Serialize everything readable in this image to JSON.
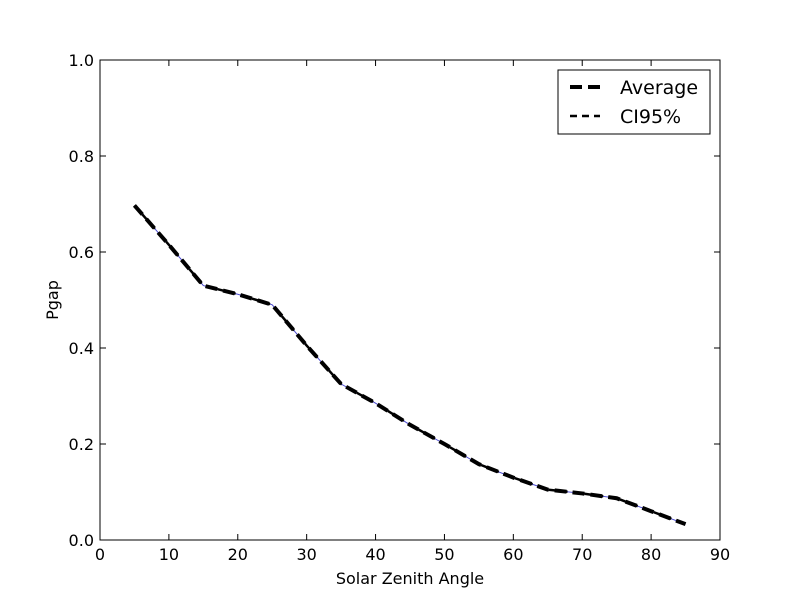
{
  "chart_data": {
    "type": "line",
    "xlabel": "Solar Zenith Angle",
    "ylabel": "Pgap",
    "xlim": [
      0,
      90
    ],
    "ylim": [
      0.0,
      1.0
    ],
    "xticks": [
      0,
      10,
      20,
      30,
      40,
      50,
      60,
      70,
      80,
      90
    ],
    "yticks": [
      0.0,
      0.2,
      0.4,
      0.6,
      0.8,
      1.0
    ],
    "xtick_labels": [
      "0",
      "10",
      "20",
      "30",
      "40",
      "50",
      "60",
      "70",
      "80",
      "90"
    ],
    "ytick_labels": [
      "0.0",
      "0.2",
      "0.4",
      "0.6",
      "0.8",
      "1.0"
    ],
    "grid": false,
    "legend_position": "top-right",
    "x": [
      5,
      10,
      15,
      20,
      25,
      30,
      35,
      40,
      45,
      50,
      55,
      60,
      65,
      70,
      75,
      80,
      85
    ],
    "series": [
      {
        "name": "Average",
        "values": [
          0.697,
          0.615,
          0.53,
          0.512,
          0.49,
          0.405,
          0.325,
          0.285,
          0.24,
          0.2,
          0.158,
          0.13,
          0.105,
          0.097,
          0.087,
          0.06,
          0.033
        ],
        "color": "#000000",
        "style": "dashed"
      },
      {
        "name": "CI95%",
        "values": [
          0.697,
          0.615,
          0.53,
          0.512,
          0.49,
          0.405,
          0.325,
          0.285,
          0.24,
          0.2,
          0.158,
          0.13,
          0.105,
          0.097,
          0.087,
          0.06,
          0.033
        ],
        "color": "#000000",
        "style": "dashed"
      }
    ],
    "thin_line_color": "#4a4ad0"
  }
}
